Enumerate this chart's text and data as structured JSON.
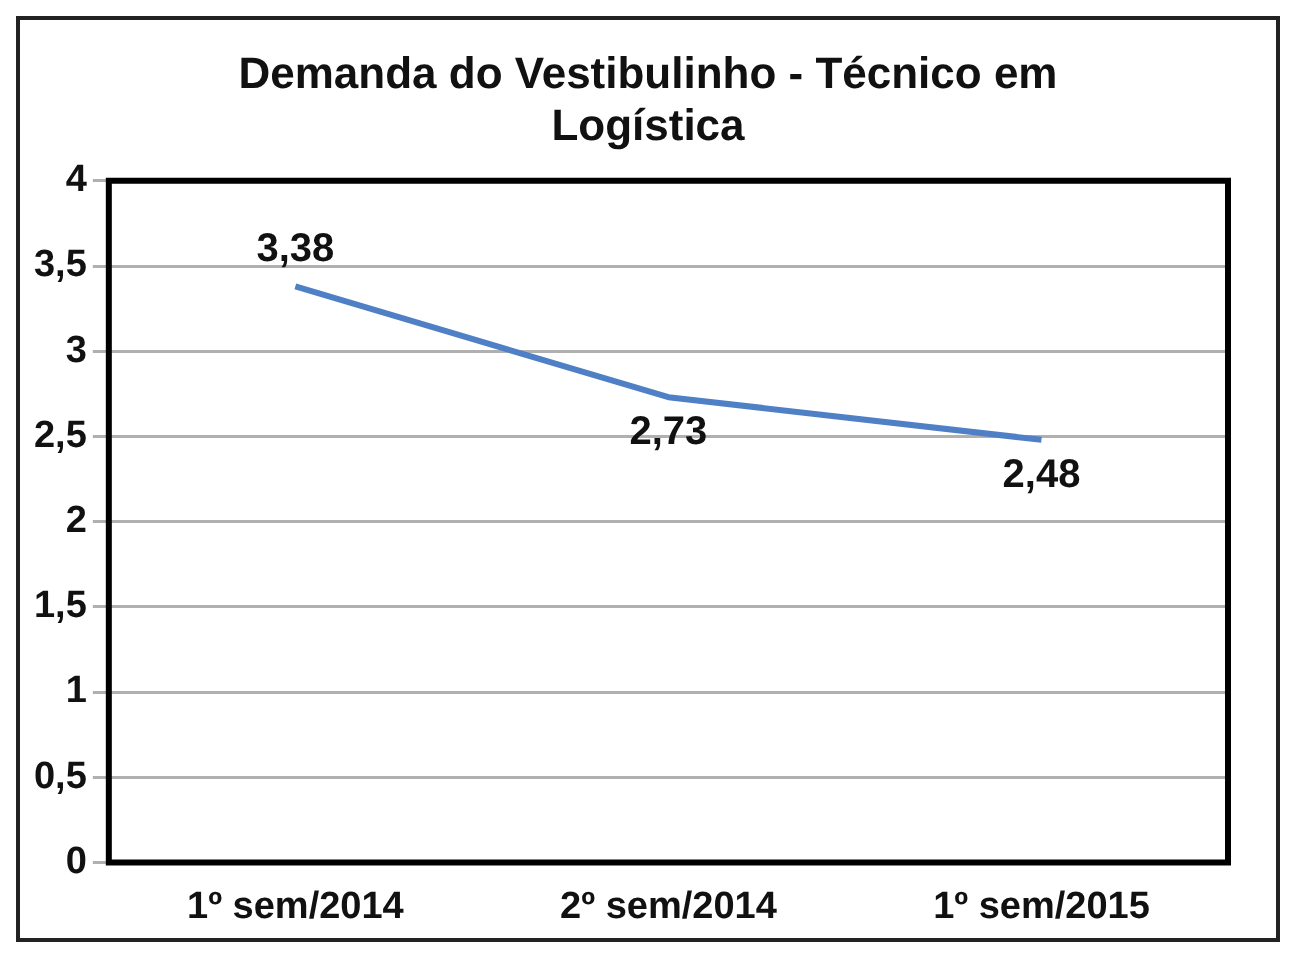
{
  "chart_data": {
    "type": "line",
    "title": "Demanda do Vestibulinho  - Técnico em Logística",
    "categories": [
      "1º sem/2014",
      "2º sem/2014",
      "1º sem/2015"
    ],
    "series": [
      {
        "color": "#4f7fc4",
        "values": [
          3.38,
          2.73,
          2.48
        ],
        "value_labels": [
          "3,38",
          "2,73",
          "2,48"
        ]
      }
    ],
    "ylim": [
      0,
      4
    ],
    "yticks": [
      0,
      {
        "value": 0.5,
        "label": "0,5"
      },
      1,
      {
        "value": 1.5,
        "label": "1,5"
      },
      2,
      {
        "value": 2.5,
        "label": "2,5"
      },
      3,
      {
        "value": 3.5,
        "label": "3,5"
      },
      4
    ],
    "grid": "y",
    "legend": false,
    "marker": "none",
    "line_style": "solid"
  }
}
